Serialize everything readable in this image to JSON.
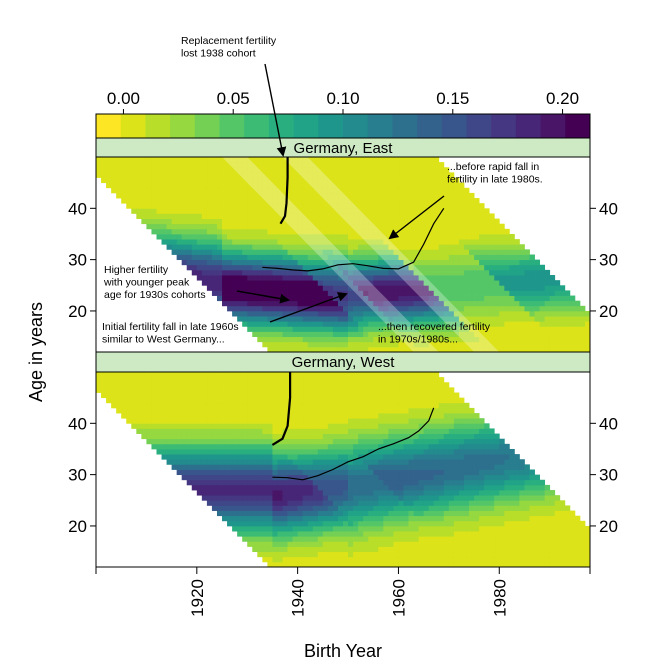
{
  "chart_data": {
    "type": "heatmap",
    "xlabel": "Birth Year",
    "ylabel": "Age in years",
    "x_ticks": [
      1920,
      1940,
      1960,
      1980
    ],
    "y_ticks": [
      20,
      30,
      40
    ],
    "xlim": [
      1900,
      1998
    ],
    "ylim": [
      12,
      50
    ],
    "colorbar": {
      "ticks": [
        "0.00",
        "0.05",
        "0.10",
        "0.15",
        "0.20"
      ],
      "range": [
        -0.0125,
        0.2125
      ],
      "colors": [
        "#FDE725",
        "#DCE319",
        "#B8DE29",
        "#95D840",
        "#73D055",
        "#55C667",
        "#3CBB75",
        "#29AF7F",
        "#20A387",
        "#1F968B",
        "#238A8D",
        "#287D8E",
        "#2D708E",
        "#33638D",
        "#39568C",
        "#404788",
        "#453781",
        "#482677",
        "#481567",
        "#440154"
      ]
    },
    "period_range": [
      1946,
      2016
    ],
    "panels": [
      {
        "title": "Germany, East",
        "peak_age_curve": [
          [
            1933,
            28.5
          ],
          [
            1936,
            28.3
          ],
          [
            1939,
            28
          ],
          [
            1942,
            27.8
          ],
          [
            1945,
            28.2
          ],
          [
            1948,
            29
          ],
          [
            1951,
            29.2
          ],
          [
            1954,
            28.8
          ],
          [
            1957,
            28.3
          ],
          [
            1960,
            28.2
          ],
          [
            1963,
            29.5
          ],
          [
            1965,
            33
          ],
          [
            1967,
            37
          ],
          [
            1969,
            40
          ]
        ],
        "replacement_curve": [
          [
            1938,
            50
          ],
          [
            1938,
            46
          ],
          [
            1937.8,
            41
          ],
          [
            1937.5,
            38.5
          ],
          [
            1936.6,
            37
          ]
        ],
        "highlight_bands": [
          {
            "birth_year_start": 1925,
            "birth_year_end": 1930
          },
          {
            "birth_year_start": 1937,
            "birth_year_end": 1942
          }
        ],
        "annotations": [
          "Replacement fertility\nlost 1938 cohort",
          "...before rapid fall in\nfertility in late 1980s.",
          "Higher fertility\nwith younger peak\nage  for 1930s cohorts",
          "Initial fertility fall in late 1960s\nsimilar to West Germany...",
          "...then recovered fertility\nin 1970s/1980s..."
        ]
      },
      {
        "title": "Germany, West",
        "peak_age_curve": [
          [
            1935,
            29.5
          ],
          [
            1938,
            29.4
          ],
          [
            1941,
            29
          ],
          [
            1944,
            29.8
          ],
          [
            1947,
            31
          ],
          [
            1950,
            32.5
          ],
          [
            1953,
            33.5
          ],
          [
            1956,
            35
          ],
          [
            1959,
            36
          ],
          [
            1962,
            37.2
          ],
          [
            1964,
            38.5
          ],
          [
            1966,
            40.5
          ],
          [
            1967,
            43
          ]
        ],
        "replacement_curve": [
          [
            1938.5,
            50
          ],
          [
            1938.5,
            45
          ],
          [
            1938,
            39.5
          ],
          [
            1937,
            37
          ],
          [
            1935,
            35.8
          ]
        ]
      }
    ]
  }
}
